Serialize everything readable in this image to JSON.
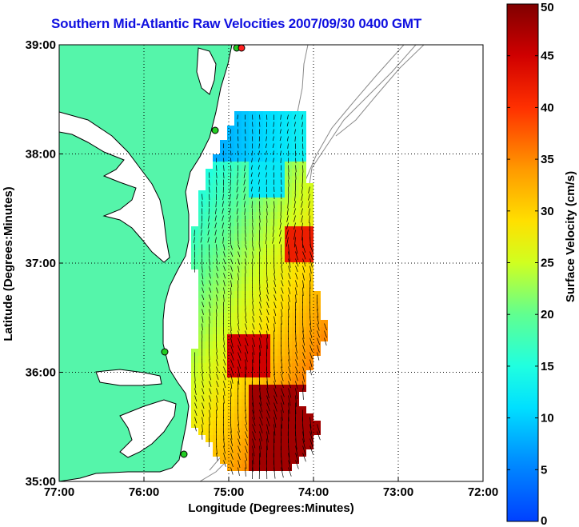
{
  "map": {
    "title": "Southern Mid-Atlantic Raw Velocities 2007/09/30 0400 GMT",
    "x_axis_label": "Longitude (Degrees:Minutes)",
    "y_axis_label": "Latitude (Degrees:Minutes)",
    "lon_ticks": [
      "77:00",
      "76:00",
      "75:00",
      "74:00",
      "73:00",
      "72:00"
    ],
    "lat_ticks": [
      "39:00",
      "38:00",
      "37:00",
      "36:00",
      "35:00"
    ],
    "lon_range": [
      -77,
      -72
    ],
    "lat_range": [
      35,
      39
    ],
    "grid": true,
    "land_color": "#55f5aa",
    "coastline_color": "#000000",
    "bathymetry_color": "#8a8a8a",
    "radar_site_color": "#22cc22"
  },
  "colorbar": {
    "label": "Surface Velocity (cm/s)",
    "min": 0,
    "max": 50,
    "ticks": [
      "0",
      "5",
      "10",
      "15",
      "20",
      "25",
      "30",
      "35",
      "40",
      "45",
      "50"
    ],
    "colormap": "jet"
  }
}
